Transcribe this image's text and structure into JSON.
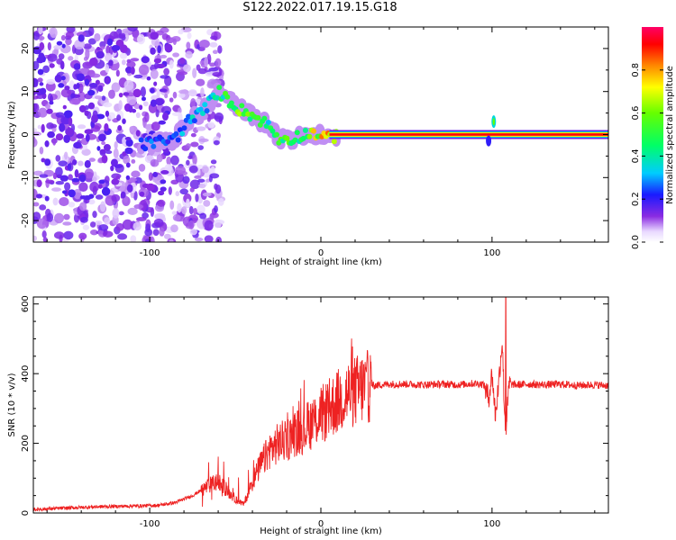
{
  "title": "S122.2022.017.19.15.G18",
  "colors": {
    "snr_line": "#ee2222",
    "frame": "#000000"
  },
  "chart_data": [
    {
      "type": "heatmap",
      "xlabel": "Height of straight line (km)",
      "ylabel": "Frequency (Hz)",
      "xlim": [
        -168,
        168
      ],
      "ylim": [
        -25,
        25
      ],
      "xticks": [
        -100,
        0,
        100
      ],
      "yticks": [
        -20,
        -10,
        0,
        10,
        20
      ],
      "xtick_labels": [
        "-100",
        "0",
        "100"
      ],
      "ytick_labels": [
        "-20",
        "-10",
        "0",
        "10",
        "20"
      ],
      "colorbar": {
        "label": "Normalized spectral amplitude",
        "range": [
          0,
          1
        ],
        "ticks": [
          "0.0",
          "0.2",
          "0.4",
          "0.6",
          "0.8"
        ],
        "tick_values": [
          0.0,
          0.2,
          0.4,
          0.6,
          0.8
        ]
      },
      "dominant_track": [
        {
          "x": -100,
          "y": -2,
          "amp": 0.3
        },
        {
          "x": -85,
          "y": -1,
          "amp": 0.3
        },
        {
          "x": -78,
          "y": 3,
          "amp": 0.4
        },
        {
          "x": -70,
          "y": 5,
          "amp": 0.4
        },
        {
          "x": -60,
          "y": 10,
          "amp": 0.5
        },
        {
          "x": -48,
          "y": 6,
          "amp": 0.7
        },
        {
          "x": -38,
          "y": 4,
          "amp": 0.6
        },
        {
          "x": -30,
          "y": 2,
          "amp": 0.5
        },
        {
          "x": -25,
          "y": -1,
          "amp": 0.6
        },
        {
          "x": -18,
          "y": -1,
          "amp": 0.6
        },
        {
          "x": -10,
          "y": 0,
          "amp": 0.5
        },
        {
          "x": -5,
          "y": 0.5,
          "amp": 0.8
        },
        {
          "x": 5,
          "y": -1,
          "amp": 0.9
        },
        {
          "x": 10,
          "y": 0,
          "amp": 0.95
        },
        {
          "x": 95,
          "y": 0,
          "amp": 0.95
        },
        {
          "x": 100,
          "y": 2,
          "amp": 0.5
        },
        {
          "x": 103,
          "y": 0,
          "amp": 0.95
        },
        {
          "x": 168,
          "y": 0,
          "amp": 0.95
        }
      ]
    },
    {
      "type": "line",
      "xlabel": "Height of straight line (km)",
      "ylabel": "SNR (10 * v/v)",
      "xlim": [
        -168,
        168
      ],
      "ylim": [
        0,
        620
      ],
      "xticks": [
        -100,
        0,
        100
      ],
      "yticks": [
        0,
        200,
        400,
        600
      ],
      "xtick_labels": [
        "-100",
        "0",
        "100"
      ],
      "ytick_labels": [
        "0",
        "200",
        "400",
        "600"
      ],
      "series": [
        {
          "x": [
            -168,
            -150,
            -130,
            -110,
            -95,
            -85,
            -75,
            -65,
            -60,
            -55,
            -50,
            -45,
            -40,
            -35,
            -30,
            -25,
            -20,
            -15,
            -10,
            -5,
            0,
            5,
            10,
            15,
            20,
            25,
            30,
            35,
            40,
            50,
            60,
            70,
            80,
            90,
            95,
            98,
            100,
            102,
            104,
            106,
            107,
            108,
            110,
            115,
            120,
            130,
            140,
            150,
            160,
            168
          ],
          "y": [
            10,
            14,
            18,
            20,
            22,
            30,
            50,
            80,
            90,
            65,
            40,
            25,
            90,
            140,
            180,
            200,
            210,
            230,
            240,
            260,
            280,
            300,
            320,
            340,
            350,
            360,
            365,
            368,
            370,
            370,
            368,
            370,
            368,
            372,
            370,
            330,
            400,
            280,
            380,
            500,
            330,
            230,
            370,
            368,
            370,
            368,
            370,
            366,
            368,
            366
          ]
        }
      ],
      "annotations": [
        {
          "x": 108,
          "y": 620,
          "text": ""
        }
      ]
    }
  ]
}
